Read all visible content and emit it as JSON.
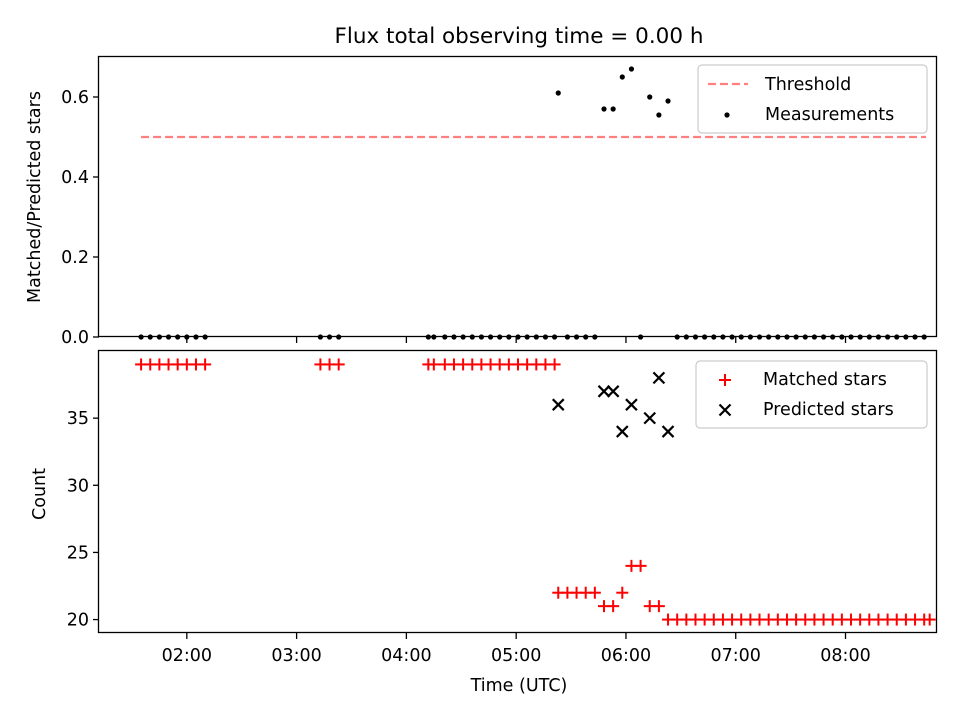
{
  "title": "Flux total observing time = 0.00 h",
  "chart_data": [
    {
      "type": "scatter",
      "ylabel": "Matched/Predicted stars",
      "xlim": [
        "01:12",
        "08:50"
      ],
      "ylim": [
        0,
        0.7
      ],
      "yticks": [
        0.0,
        0.2,
        0.4,
        0.6
      ],
      "ytick_labels": [
        "0.0",
        "0.2",
        "0.4",
        "0.6"
      ],
      "legend_position": "top-right",
      "threshold": {
        "name": "Threshold",
        "value": 0.5,
        "x_start": "01:35",
        "x_end": "08:44",
        "color": "#ff7f7f"
      },
      "series": [
        {
          "name": "Measurements",
          "color": "#000000",
          "points": [
            [
              "01:35",
              0
            ],
            [
              "01:40",
              0
            ],
            [
              "01:45",
              0
            ],
            [
              "01:50",
              0
            ],
            [
              "01:55",
              0
            ],
            [
              "02:00",
              0
            ],
            [
              "02:05",
              0
            ],
            [
              "02:10",
              0
            ],
            [
              "03:13",
              0
            ],
            [
              "03:18",
              0
            ],
            [
              "03:23",
              0
            ],
            [
              "04:12",
              0
            ],
            [
              "04:15",
              0
            ],
            [
              "04:21",
              0
            ],
            [
              "04:26",
              0
            ],
            [
              "04:31",
              0
            ],
            [
              "04:36",
              0
            ],
            [
              "04:41",
              0
            ],
            [
              "04:46",
              0
            ],
            [
              "04:51",
              0
            ],
            [
              "04:56",
              0
            ],
            [
              "05:01",
              0
            ],
            [
              "05:06",
              0
            ],
            [
              "05:11",
              0
            ],
            [
              "05:16",
              0
            ],
            [
              "05:21",
              0
            ],
            [
              "05:28",
              0
            ],
            [
              "05:33",
              0
            ],
            [
              "05:38",
              0
            ],
            [
              "05:43",
              0
            ],
            [
              "06:08",
              0
            ],
            [
              "06:28",
              0
            ],
            [
              "06:33",
              0
            ],
            [
              "06:38",
              0
            ],
            [
              "06:43",
              0
            ],
            [
              "06:48",
              0
            ],
            [
              "06:53",
              0
            ],
            [
              "06:58",
              0
            ],
            [
              "07:03",
              0
            ],
            [
              "07:08",
              0
            ],
            [
              "07:13",
              0
            ],
            [
              "07:18",
              0
            ],
            [
              "07:23",
              0
            ],
            [
              "07:28",
              0
            ],
            [
              "07:33",
              0
            ],
            [
              "07:38",
              0
            ],
            [
              "07:43",
              0
            ],
            [
              "07:48",
              0
            ],
            [
              "07:53",
              0
            ],
            [
              "07:58",
              0
            ],
            [
              "08:03",
              0
            ],
            [
              "08:08",
              0
            ],
            [
              "08:13",
              0
            ],
            [
              "08:18",
              0
            ],
            [
              "08:23",
              0
            ],
            [
              "08:28",
              0
            ],
            [
              "08:33",
              0
            ],
            [
              "08:38",
              0
            ],
            [
              "08:43",
              0
            ],
            [
              "05:23",
              0.61
            ],
            [
              "05:48",
              0.57
            ],
            [
              "05:53",
              0.57
            ],
            [
              "05:58",
              0.65
            ],
            [
              "06:03",
              0.67
            ],
            [
              "06:13",
              0.6
            ],
            [
              "06:18",
              0.555
            ],
            [
              "06:23",
              0.59
            ]
          ]
        }
      ]
    },
    {
      "type": "scatter",
      "xlabel": "Time (UTC)",
      "ylabel": "Count",
      "xlim": [
        "01:12",
        "08:50"
      ],
      "ylim": [
        19,
        40
      ],
      "xticks": [
        "02:00",
        "03:00",
        "04:00",
        "05:00",
        "06:00",
        "07:00",
        "08:00"
      ],
      "yticks": [
        20,
        25,
        30,
        35
      ],
      "ytick_labels": [
        "20",
        "25",
        "30",
        "35"
      ],
      "legend_position": "top-right",
      "series": [
        {
          "name": "Matched stars",
          "color": "#ff0000",
          "marker": "+",
          "points": [
            [
              "01:35",
              39
            ],
            [
              "01:40",
              39
            ],
            [
              "01:45",
              39
            ],
            [
              "01:50",
              39
            ],
            [
              "01:55",
              39
            ],
            [
              "02:00",
              39
            ],
            [
              "02:05",
              39
            ],
            [
              "02:10",
              39
            ],
            [
              "03:13",
              39
            ],
            [
              "03:18",
              39
            ],
            [
              "03:23",
              39
            ],
            [
              "04:12",
              39
            ],
            [
              "04:15",
              39
            ],
            [
              "04:21",
              39
            ],
            [
              "04:26",
              39
            ],
            [
              "04:31",
              39
            ],
            [
              "04:36",
              39
            ],
            [
              "04:41",
              39
            ],
            [
              "04:46",
              39
            ],
            [
              "04:51",
              39
            ],
            [
              "04:56",
              39
            ],
            [
              "05:01",
              39
            ],
            [
              "05:06",
              39
            ],
            [
              "05:11",
              39
            ],
            [
              "05:16",
              39
            ],
            [
              "05:21",
              39
            ],
            [
              "05:23",
              22
            ],
            [
              "05:28",
              22
            ],
            [
              "05:33",
              22
            ],
            [
              "05:38",
              22
            ],
            [
              "05:43",
              22
            ],
            [
              "05:48",
              21
            ],
            [
              "05:53",
              21
            ],
            [
              "05:58",
              22
            ],
            [
              "06:03",
              24
            ],
            [
              "06:08",
              24
            ],
            [
              "06:13",
              21
            ],
            [
              "06:18",
              21
            ],
            [
              "06:23",
              20
            ],
            [
              "06:28",
              20
            ],
            [
              "06:33",
              20
            ],
            [
              "06:38",
              20
            ],
            [
              "06:43",
              20
            ],
            [
              "06:48",
              20
            ],
            [
              "06:53",
              20
            ],
            [
              "06:58",
              20
            ],
            [
              "07:03",
              20
            ],
            [
              "07:08",
              20
            ],
            [
              "07:13",
              20
            ],
            [
              "07:18",
              20
            ],
            [
              "07:23",
              20
            ],
            [
              "07:28",
              20
            ],
            [
              "07:33",
              20
            ],
            [
              "07:38",
              20
            ],
            [
              "07:43",
              20
            ],
            [
              "07:48",
              20
            ],
            [
              "07:53",
              20
            ],
            [
              "07:58",
              20
            ],
            [
              "08:03",
              20
            ],
            [
              "08:08",
              20
            ],
            [
              "08:13",
              20
            ],
            [
              "08:18",
              20
            ],
            [
              "08:23",
              20
            ],
            [
              "08:28",
              20
            ],
            [
              "08:33",
              20
            ],
            [
              "08:38",
              20
            ],
            [
              "08:43",
              20
            ],
            [
              "08:46",
              20
            ]
          ]
        },
        {
          "name": "Predicted stars",
          "color": "#000000",
          "marker": "x",
          "points": [
            [
              "05:23",
              36
            ],
            [
              "05:48",
              37
            ],
            [
              "05:53",
              37
            ],
            [
              "05:58",
              34
            ],
            [
              "06:03",
              36
            ],
            [
              "06:13",
              35
            ],
            [
              "06:18",
              38
            ],
            [
              "06:23",
              34
            ]
          ]
        }
      ]
    }
  ]
}
